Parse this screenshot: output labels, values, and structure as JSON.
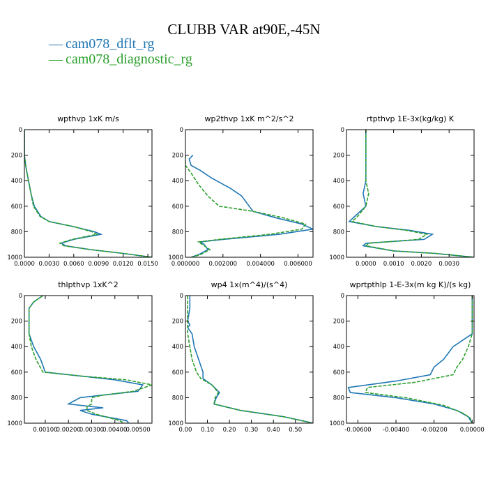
{
  "title": "CLUBB VAR at90E,-45N",
  "legend": [
    {
      "label": "cam078_dflt_rg",
      "color": "#1f77b4",
      "style": "solid"
    },
    {
      "label": "cam078_diagnostic_rg",
      "color": "#2ca02c",
      "style": "dashed"
    }
  ],
  "chart_data": [
    {
      "type": "line",
      "title": "wpthvp  1xK m/s",
      "ylim": [
        1000,
        0
      ],
      "yticks": [
        0,
        200,
        400,
        600,
        800,
        1000
      ],
      "xlim": [
        0,
        0.0155
      ],
      "xticks": [
        0,
        0.003,
        0.006,
        0.009,
        0.012,
        0.015
      ],
      "xtick_labels": [
        "0.0000",
        "0.0030",
        "0.0060",
        "0.0090",
        "0.0120",
        "0.0150"
      ],
      "series": [
        {
          "name": "cam078_dflt_rg",
          "points": [
            [
              0,
              0
            ],
            [
              0,
              200
            ],
            [
              0.0002,
              300
            ],
            [
              0.0005,
              400
            ],
            [
              0.0008,
              500
            ],
            [
              0.0012,
              600
            ],
            [
              0.002,
              680
            ],
            [
              0.003,
              720
            ],
            [
              0.006,
              760
            ],
            [
              0.0085,
              800
            ],
            [
              0.0093,
              820
            ],
            [
              0.006,
              860
            ],
            [
              0.0045,
              890
            ],
            [
              0.005,
              910
            ],
            [
              0.008,
              940
            ],
            [
              0.012,
              970
            ],
            [
              0.0155,
              1000
            ]
          ]
        },
        {
          "name": "cam078_diagnostic_rg",
          "points": [
            [
              0,
              0
            ],
            [
              0,
              200
            ],
            [
              0.0002,
              300
            ],
            [
              0.0005,
              400
            ],
            [
              0.0008,
              500
            ],
            [
              0.0011,
              600
            ],
            [
              0.0019,
              680
            ],
            [
              0.003,
              720
            ],
            [
              0.006,
              760
            ],
            [
              0.0082,
              800
            ],
            [
              0.0088,
              820
            ],
            [
              0.0058,
              860
            ],
            [
              0.0043,
              890
            ],
            [
              0.0048,
              910
            ],
            [
              0.008,
              940
            ],
            [
              0.012,
              970
            ],
            [
              0.0155,
              1000
            ]
          ]
        }
      ]
    },
    {
      "type": "line",
      "title": "wp2thvp  1xK m^2/s^2",
      "ylim": [
        1000,
        0
      ],
      "yticks": [
        0,
        200,
        400,
        600,
        800,
        1000
      ],
      "xlim": [
        0,
        0.0068
      ],
      "xticks": [
        0,
        0.002,
        0.004,
        0.006
      ],
      "xtick_labels": [
        "0.000000",
        "0.002000",
        "0.004000",
        "0.006000"
      ],
      "series": [
        {
          "name": "cam078_dflt_rg",
          "points": [
            [
              0.0004,
              200
            ],
            [
              0.0002,
              230
            ],
            [
              0.0003,
              280
            ],
            [
              0.0008,
              320
            ],
            [
              0.0014,
              380
            ],
            [
              0.0024,
              460
            ],
            [
              0.003,
              520
            ],
            [
              0.0034,
              600
            ],
            [
              0.0036,
              640
            ],
            [
              0.0048,
              690
            ],
            [
              0.0062,
              740
            ],
            [
              0.0068,
              780
            ],
            [
              0.005,
              820
            ],
            [
              0.002,
              860
            ],
            [
              0.0008,
              880
            ],
            [
              0.001,
              900
            ],
            [
              0.0012,
              940
            ],
            [
              0.0007,
              980
            ],
            [
              0.0003,
              1000
            ]
          ]
        },
        {
          "name": "cam078_diagnostic_rg",
          "points": [
            [
              0,
              200
            ],
            [
              0,
              280
            ],
            [
              0.0003,
              340
            ],
            [
              0.0007,
              430
            ],
            [
              0.0012,
              520
            ],
            [
              0.0018,
              600
            ],
            [
              0.0036,
              640
            ],
            [
              0.0052,
              690
            ],
            [
              0.0064,
              740
            ],
            [
              0.0062,
              780
            ],
            [
              0.0045,
              820
            ],
            [
              0.0018,
              860
            ],
            [
              0.0007,
              880
            ],
            [
              0.001,
              910
            ],
            [
              0.0013,
              940
            ],
            [
              0.0008,
              980
            ],
            [
              0.0003,
              1000
            ]
          ]
        }
      ]
    },
    {
      "type": "line",
      "title": "rtpthvp  1E-3x(kg/kg) K",
      "ylim": [
        1000,
        0
      ],
      "yticks": [
        0,
        200,
        400,
        600,
        800,
        1000
      ],
      "xlim": [
        -0.0007,
        0.0039
      ],
      "xticks": [
        0,
        0.001,
        0.002,
        0.003
      ],
      "xtick_labels": [
        "0.0000",
        "0.0010",
        "0.0020",
        "0.0030"
      ],
      "series": [
        {
          "name": "cam078_dflt_rg",
          "points": [
            [
              0,
              0
            ],
            [
              0,
              200
            ],
            [
              0,
              300
            ],
            [
              0,
              400
            ],
            [
              -0.0001,
              500
            ],
            [
              0,
              600
            ],
            [
              -0.0004,
              680
            ],
            [
              -0.0006,
              720
            ],
            [
              0.0004,
              760
            ],
            [
              0.0016,
              790
            ],
            [
              0.0024,
              820
            ],
            [
              0.0021,
              860
            ],
            [
              0,
              890
            ],
            [
              -0.0001,
              910
            ],
            [
              0.001,
              950
            ],
            [
              0.0025,
              970
            ],
            [
              0.0039,
              1000
            ]
          ]
        },
        {
          "name": "cam078_diagnostic_rg",
          "points": [
            [
              0,
              0
            ],
            [
              0,
              200
            ],
            [
              0,
              300
            ],
            [
              0,
              400
            ],
            [
              0.0001,
              500
            ],
            [
              0,
              600
            ],
            [
              -0.0003,
              680
            ],
            [
              -0.0005,
              720
            ],
            [
              0.0004,
              760
            ],
            [
              0.0015,
              790
            ],
            [
              0.0022,
              820
            ],
            [
              0.0019,
              860
            ],
            [
              0.0001,
              890
            ],
            [
              0,
              910
            ],
            [
              0.001,
              950
            ],
            [
              0.0025,
              970
            ],
            [
              0.0039,
              1000
            ]
          ]
        }
      ]
    },
    {
      "type": "line",
      "title": "thlpthvp  1xK^2",
      "ylim": [
        1000,
        0
      ],
      "yticks": [
        0,
        200,
        400,
        600,
        800,
        1000
      ],
      "xlim": [
        0.0001,
        0.0056
      ],
      "xticks": [
        0.001,
        0.002,
        0.003,
        0.004,
        0.005
      ],
      "xtick_labels": [
        "0.00100",
        "0.00200",
        "0.00300",
        "0.00400",
        "0.00500"
      ],
      "series": [
        {
          "name": "cam078_dflt_rg",
          "points": [
            [
              0.0009,
              0
            ],
            [
              0.0005,
              50
            ],
            [
              0.0003,
              100
            ],
            [
              0.0003,
              200
            ],
            [
              0.0003,
              300
            ],
            [
              0.0005,
              400
            ],
            [
              0.0008,
              500
            ],
            [
              0.001,
              600
            ],
            [
              0.0025,
              630
            ],
            [
              0.004,
              660
            ],
            [
              0.0052,
              700
            ],
            [
              0.005,
              750
            ],
            [
              0.0035,
              780
            ],
            [
              0.0025,
              800
            ],
            [
              0.002,
              850
            ],
            [
              0.003,
              870
            ],
            [
              0.0035,
              880
            ],
            [
              0.0025,
              900
            ],
            [
              0.003,
              930
            ],
            [
              0.0045,
              980
            ],
            [
              0.0046,
              1000
            ]
          ]
        },
        {
          "name": "cam078_diagnostic_rg",
          "points": [
            [
              0.0009,
              0
            ],
            [
              0.0005,
              50
            ],
            [
              0.0003,
              100
            ],
            [
              0.0003,
              200
            ],
            [
              0.0003,
              300
            ],
            [
              0.0004,
              400
            ],
            [
              0.0006,
              500
            ],
            [
              0.0009,
              600
            ],
            [
              0.0025,
              630
            ],
            [
              0.0045,
              660
            ],
            [
              0.0056,
              700
            ],
            [
              0.0048,
              750
            ],
            [
              0.0035,
              780
            ],
            [
              0.003,
              800
            ],
            [
              0.003,
              850
            ],
            [
              0.0028,
              870
            ],
            [
              0.0028,
              900
            ],
            [
              0.0032,
              930
            ],
            [
              0.0042,
              980
            ],
            [
              0.0044,
              1000
            ]
          ]
        }
      ]
    },
    {
      "type": "line",
      "title": "wp4  1x(m^4)/(s^4)",
      "ylim": [
        1000,
        0
      ],
      "yticks": [
        0,
        200,
        400,
        600,
        800,
        1000
      ],
      "xlim": [
        0,
        0.58
      ],
      "xticks": [
        0,
        0.1,
        0.2,
        0.3,
        0.4,
        0.5
      ],
      "xtick_labels": [
        "0.00",
        "0.10",
        "0.20",
        "0.30",
        "0.40",
        "0.50"
      ],
      "series": [
        {
          "name": "cam078_dflt_rg",
          "points": [
            [
              0.02,
              0
            ],
            [
              0.02,
              100
            ],
            [
              0.01,
              200
            ],
            [
              0.02,
              230
            ],
            [
              0.01,
              250
            ],
            [
              0.03,
              300
            ],
            [
              0.04,
              400
            ],
            [
              0.06,
              500
            ],
            [
              0.08,
              600
            ],
            [
              0.08,
              650
            ],
            [
              0.12,
              700
            ],
            [
              0.155,
              760
            ],
            [
              0.14,
              800
            ],
            [
              0.13,
              850
            ],
            [
              0.25,
              900
            ],
            [
              0.45,
              950
            ],
            [
              0.58,
              1000
            ]
          ]
        },
        {
          "name": "cam078_diagnostic_rg",
          "points": [
            [
              0.01,
              0
            ],
            [
              0.01,
              100
            ],
            [
              0.01,
              200
            ],
            [
              0.01,
              300
            ],
            [
              0.02,
              400
            ],
            [
              0.03,
              500
            ],
            [
              0.05,
              600
            ],
            [
              0.07,
              650
            ],
            [
              0.12,
              700
            ],
            [
              0.15,
              760
            ],
            [
              0.135,
              800
            ],
            [
              0.13,
              850
            ],
            [
              0.25,
              900
            ],
            [
              0.45,
              950
            ],
            [
              0.58,
              1000
            ]
          ]
        }
      ]
    },
    {
      "type": "line",
      "title": "wprtpthlp  1-E-3x(m kg K)/(s kg)",
      "ylim": [
        1000,
        0
      ],
      "yticks": [
        0,
        200,
        400,
        600,
        800,
        1000
      ],
      "xlim": [
        -0.0066,
        0.0001
      ],
      "xticks": [
        -0.006,
        -0.004,
        -0.002,
        0
      ],
      "xtick_labels": [
        "-0.00600",
        "-0.00400",
        "-0.00200",
        "0.00000"
      ],
      "series": [
        {
          "name": "cam078_dflt_rg",
          "points": [
            [
              0,
              0
            ],
            [
              0,
              300
            ],
            [
              -0.0005,
              350
            ],
            [
              -0.001,
              400
            ],
            [
              -0.0015,
              500
            ],
            [
              -0.002,
              560
            ],
            [
              -0.0022,
              620
            ],
            [
              -0.004,
              670
            ],
            [
              -0.0065,
              720
            ],
            [
              -0.0064,
              760
            ],
            [
              -0.004,
              800
            ],
            [
              -0.002,
              850
            ],
            [
              -0.0008,
              900
            ],
            [
              -0.0002,
              950
            ],
            [
              0,
              1000
            ]
          ]
        },
        {
          "name": "cam078_diagnostic_rg",
          "points": [
            [
              0,
              0
            ],
            [
              0,
              300
            ],
            [
              -0.0002,
              400
            ],
            [
              -0.0005,
              500
            ],
            [
              -0.0008,
              560
            ],
            [
              -0.001,
              620
            ],
            [
              -0.003,
              680
            ],
            [
              -0.0055,
              720
            ],
            [
              -0.0056,
              760
            ],
            [
              -0.0035,
              800
            ],
            [
              -0.0015,
              860
            ],
            [
              -0.0005,
              920
            ],
            [
              -0.0001,
              960
            ],
            [
              0,
              1000
            ]
          ]
        }
      ]
    }
  ]
}
